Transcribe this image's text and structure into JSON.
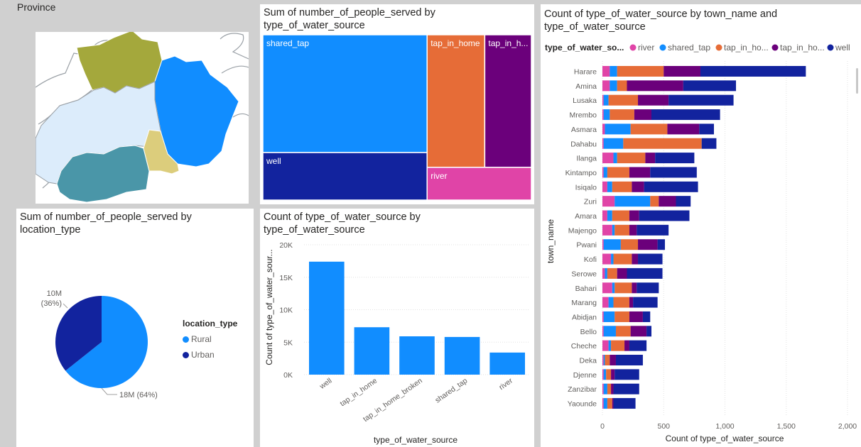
{
  "map_panel": {
    "title": "Province"
  },
  "colors": {
    "river": "#e044a7",
    "shared_tap": "#118dff",
    "tap_in_home": "#e66c37",
    "tap_in_home_broken": "#6b007b",
    "well": "#12239e",
    "province_1": "#a4a83c",
    "province_2": "#118dff",
    "province_3": "#dcecfb",
    "province_4": "#4a96a8",
    "province_5": "#dccd7c"
  },
  "treemap": {
    "title_line1": "Sum of number_of_people_served by",
    "title_line2": "type_of_water_source",
    "labels": {
      "shared_tap": "shared_tap",
      "tap_in_home": "tap_in_home",
      "tap_in_home_broken": "tap_in_h...",
      "well": "well",
      "river": "river"
    }
  },
  "pie": {
    "title_line1": "Sum of number_of_people_served by",
    "title_line2": "location_type",
    "legend_title": "location_type",
    "label_urban_1": "10M",
    "label_urban_2": "(36%)",
    "label_rural": "18M (64%)"
  },
  "column": {
    "title_line1": "Count of type_of_water_source by",
    "title_line2": "type_of_water_source",
    "xlabel": "type_of_water_source",
    "ylabel": "Count of type_of_water_sour..."
  },
  "stacked": {
    "title_line1": "Count of type_of_water_source by town_name and",
    "title_line2": "type_of_water_source",
    "legend_title": "type_of_water_so...",
    "legend_labels": [
      "river",
      "shared_tap",
      "tap_in_ho...",
      "tap_in_ho...",
      "well"
    ],
    "xlabel": "Count of type_of_water_source",
    "ylabel": "town_name"
  },
  "chart_data": [
    {
      "type": "treemap",
      "title": "Sum of number_of_people_served by type_of_water_source",
      "categories": [
        "shared_tap",
        "well",
        "tap_in_home",
        "tap_in_home_broken",
        "river"
      ],
      "values": [
        11900000,
        4800000,
        4700000,
        3800000,
        2100000
      ]
    },
    {
      "type": "pie",
      "title": "Sum of number_of_people_served by location_type",
      "categories": [
        "Rural",
        "Urban"
      ],
      "values": [
        18000000,
        10000000
      ],
      "percent": [
        64,
        36
      ],
      "legend": "right"
    },
    {
      "type": "bar",
      "title": "Count of type_of_water_source by type_of_water_source",
      "categories": [
        "well",
        "tap_in_home",
        "tap_in_home_broken",
        "shared_tap",
        "river"
      ],
      "values": [
        17400,
        7300,
        5900,
        5800,
        3400
      ],
      "xlabel": "type_of_water_source",
      "ylabel": "Count of type_of_water_sour...",
      "ylim": [
        0,
        20000
      ],
      "yticks": [
        "0K",
        "5K",
        "10K",
        "15K",
        "20K"
      ],
      "grid": true
    },
    {
      "type": "bar",
      "orientation": "horizontal-stacked",
      "title": "Count of type_of_water_source by town_name and type_of_water_source",
      "xlabel": "Count of type_of_water_source",
      "ylabel": "town_name",
      "xlim": [
        0,
        2000
      ],
      "xticks": [
        "0",
        "500",
        "1,000",
        "1,500",
        "2,000"
      ],
      "legend": "top",
      "categories": [
        "Harare",
        "Amina",
        "Lusaka",
        "Mrembo",
        "Asmara",
        "Dahabu",
        "Ilanga",
        "Kintampo",
        "Isiqalo",
        "Zuri",
        "Amara",
        "Majengo",
        "Pwani",
        "Kofi",
        "Serowe",
        "Bahari",
        "Marang",
        "Abidjan",
        "Bello",
        "Cheche",
        "Deka",
        "Djenne",
        "Zanzibar",
        "Yaounde"
      ],
      "series": [
        {
          "name": "river",
          "values": [
            60,
            60,
            10,
            10,
            20,
            10,
            90,
            10,
            40,
            100,
            40,
            80,
            10,
            70,
            20,
            80,
            50,
            10,
            10,
            50,
            10,
            10,
            10,
            10
          ]
        },
        {
          "name": "shared_tap",
          "values": [
            60,
            60,
            40,
            50,
            210,
            160,
            30,
            30,
            40,
            290,
            40,
            20,
            140,
            20,
            20,
            20,
            40,
            90,
            100,
            20,
            10,
            20,
            30,
            30
          ]
        },
        {
          "name": "tap_in_home",
          "values": [
            380,
            80,
            240,
            200,
            300,
            640,
            230,
            180,
            160,
            70,
            140,
            120,
            140,
            150,
            80,
            140,
            130,
            120,
            120,
            110,
            40,
            40,
            30,
            40
          ]
        },
        {
          "name": "tap_in_home_broken",
          "values": [
            300,
            460,
            250,
            140,
            260,
            0,
            80,
            170,
            100,
            140,
            80,
            60,
            160,
            50,
            80,
            40,
            30,
            110,
            130,
            40,
            50,
            30,
            20,
            10
          ]
        },
        {
          "name": "well",
          "values": [
            860,
            430,
            530,
            560,
            120,
            120,
            320,
            380,
            440,
            120,
            410,
            260,
            60,
            200,
            290,
            180,
            200,
            60,
            40,
            140,
            220,
            200,
            210,
            180
          ]
        }
      ]
    }
  ]
}
